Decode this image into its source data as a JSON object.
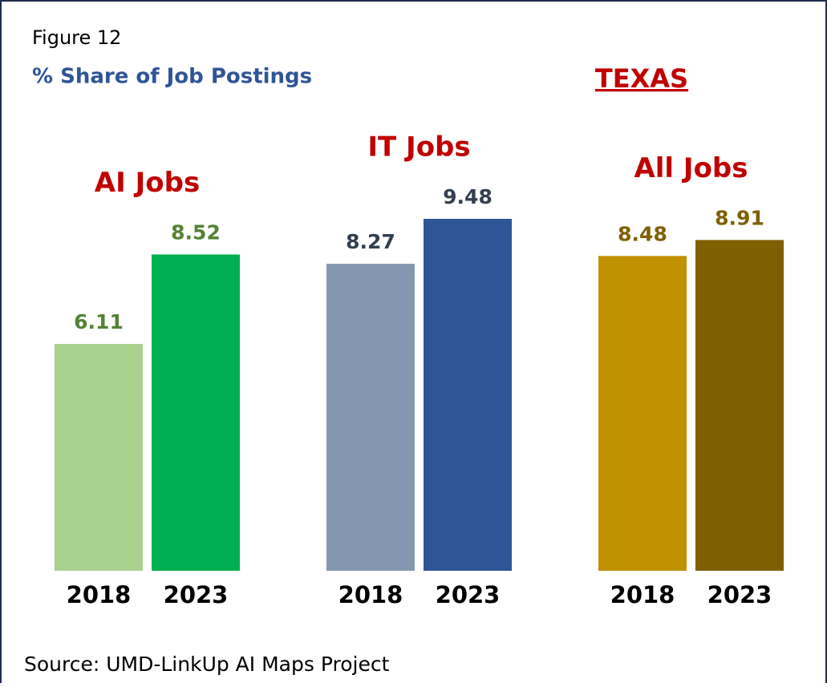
{
  "chart_data": {
    "type": "bar",
    "figure_label": "Figure 12",
    "title": "% Share of Job Postings",
    "region": "TEXAS",
    "source": "Source: UMD-LinkUp AI Maps Project",
    "groups": [
      {
        "name": "AI Jobs",
        "categories": [
          "2018",
          "2023"
        ],
        "values": [
          6.11,
          8.52
        ],
        "colors": [
          "#a9d18e",
          "#00b050"
        ],
        "label_color": "#548235"
      },
      {
        "name": "IT Jobs",
        "categories": [
          "2018",
          "2023"
        ],
        "values": [
          8.27,
          9.48
        ],
        "colors": [
          "#8497b0",
          "#2f5597"
        ],
        "label_color": "#333f50"
      },
      {
        "name": "All Jobs",
        "categories": [
          "2018",
          "2023"
        ],
        "values": [
          8.48,
          8.91
        ],
        "colors": [
          "#bf9000",
          "#7f6000"
        ],
        "label_color": "#7f6000"
      }
    ]
  }
}
